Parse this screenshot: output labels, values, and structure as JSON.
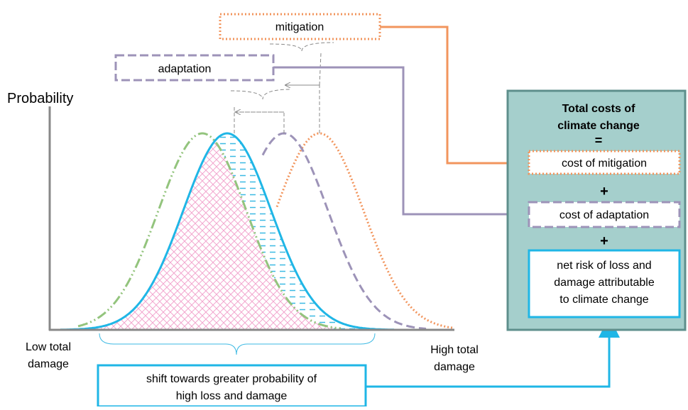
{
  "labels": {
    "mitigation": "mitigation",
    "adaptation": "adaptation",
    "y_axis": "Probability",
    "low": [
      "Low total",
      "damage"
    ],
    "high": [
      "High total",
      "damage"
    ],
    "shift": [
      "shift towards greater probability of",
      "high loss and damage"
    ]
  },
  "panel": {
    "title": [
      "Total costs of",
      "climate change"
    ],
    "equals": "=",
    "mitigation": "cost of mitigation",
    "plus1": "+",
    "adaptation": "cost of adaptation",
    "plus2": "+",
    "risk": [
      "net risk of loss and",
      "damage attributable",
      "to climate change"
    ]
  }
}
